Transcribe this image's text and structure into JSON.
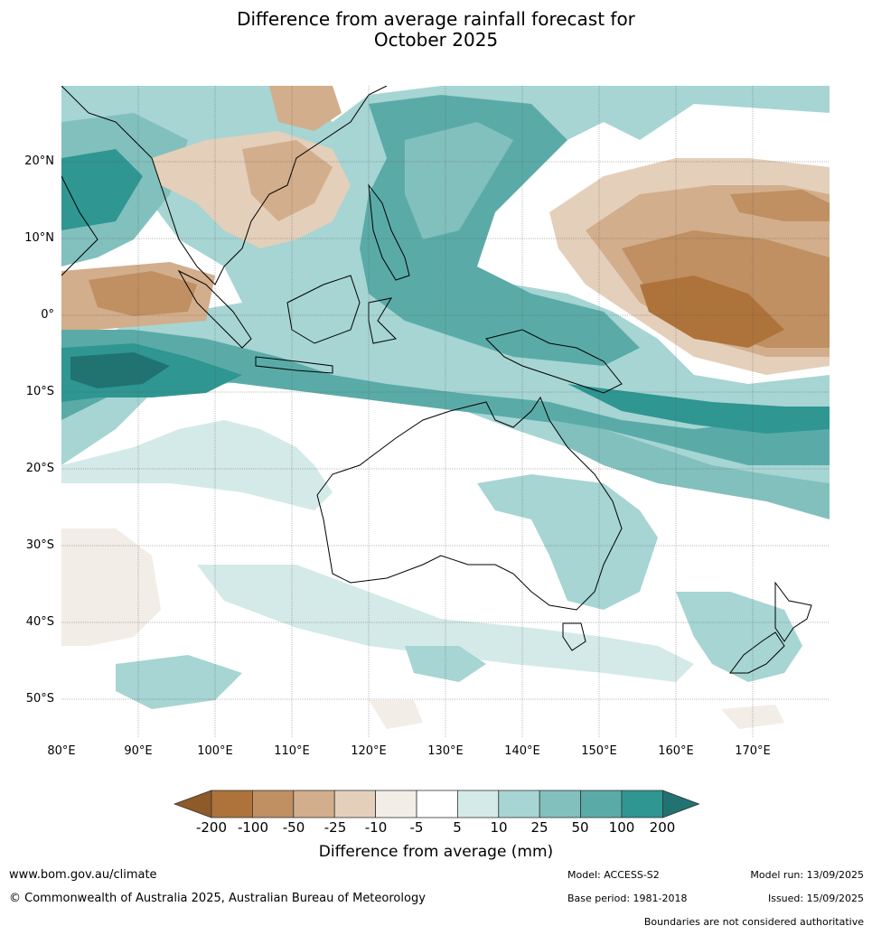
{
  "title_line1": "Difference from average rainfall forecast for",
  "title_line2": "October 2025",
  "lat_labels": [
    "20°N",
    "10°N",
    "0°",
    "10°S",
    "20°S",
    "30°S",
    "40°S",
    "50°S"
  ],
  "lon_labels": [
    "80°E",
    "90°E",
    "100°E",
    "110°E",
    "120°E",
    "130°E",
    "140°E",
    "150°E",
    "160°E",
    "170°E"
  ],
  "legend": {
    "title": "Difference from average (mm)",
    "ticks": [
      "-200",
      "-100",
      "-50",
      "-25",
      "-10",
      "-5",
      "5",
      "10",
      "25",
      "50",
      "100",
      "200"
    ],
    "colors": [
      "#8e5a2a",
      "#ae733b",
      "#c08f62",
      "#d2ae8c",
      "#e4cfba",
      "#f2ede6",
      "#ffffff",
      "#d4eae8",
      "#a6d5d3",
      "#82c0be",
      "#5aaba8",
      "#2f9692",
      "#207371"
    ]
  },
  "footer": {
    "website": "www.bom.gov.au/climate",
    "copyright": "© Commonwealth of Australia 2025, Australian Bureau of Meteorology",
    "model": "Model: ACCESS-S2",
    "base_period": "Base period: 1981-2018",
    "model_run": "Model run: 13/09/2025",
    "issued": "Issued: 15/09/2025",
    "boundaries_note": "Boundaries are not considered authoritative"
  }
}
